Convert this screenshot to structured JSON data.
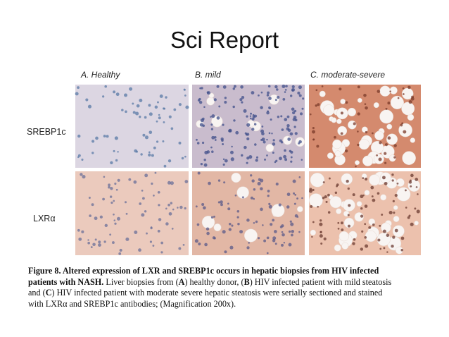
{
  "header": {
    "title": "Sci Report"
  },
  "figure": {
    "columns": [
      "A. Healthy",
      "B. mild",
      "C. moderate-severe"
    ],
    "rows": [
      "SREBP1c",
      "LXRα"
    ],
    "caption": [
      {
        "text": "Figure 8. Altered expression of LXR and SREBP1c occurs in hepatic biopsies from HIV infected patients with NASH.",
        "bold": true
      },
      {
        "text": " Liver biopsies from (",
        "bold": false
      },
      {
        "text": "A",
        "bold": true
      },
      {
        "text": ") healthy donor, (",
        "bold": false
      },
      {
        "text": "B",
        "bold": true
      },
      {
        "text": ") HIV infected patient with mild steatosis and (",
        "bold": false
      },
      {
        "text": "C",
        "bold": true
      },
      {
        "text": ") HIV infected patient with moderate severe hepatic steatosis were serially sectioned and stained with LXRα and SREBP1c antibodies; (Magnification 200x).",
        "bold": false
      }
    ]
  }
}
